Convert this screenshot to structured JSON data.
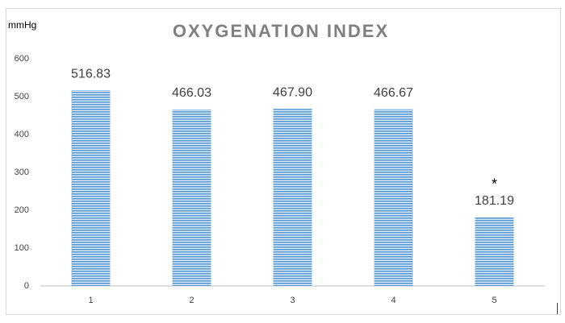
{
  "chart_data": {
    "type": "bar",
    "title": "OXYGENATION INDEX",
    "y_label": "mmHg",
    "categories": [
      "1",
      "2",
      "3",
      "4",
      "5"
    ],
    "values": [
      516.83,
      466.03,
      467.9,
      466.67,
      181.19
    ],
    "value_labels": [
      "516.83",
      "466.03",
      "467.90",
      "466.67",
      "181.19"
    ],
    "significance_labels": [
      null,
      null,
      null,
      null,
      "*"
    ],
    "color": "#5b9bd5",
    "ylim": [
      0,
      600
    ],
    "yticks": [
      0,
      100,
      200,
      300,
      400,
      500,
      600
    ],
    "grid": false
  }
}
